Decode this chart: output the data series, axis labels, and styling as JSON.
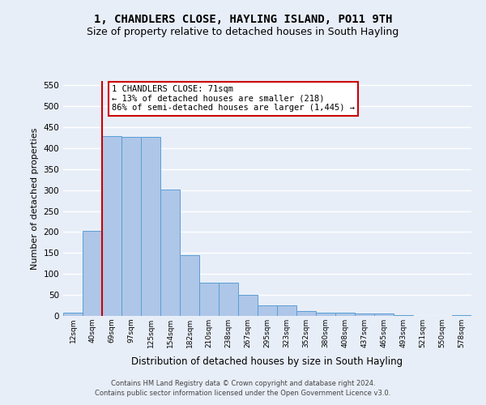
{
  "title": "1, CHANDLERS CLOSE, HAYLING ISLAND, PO11 9TH",
  "subtitle": "Size of property relative to detached houses in South Hayling",
  "xlabel": "Distribution of detached houses by size in South Hayling",
  "ylabel": "Number of detached properties",
  "categories": [
    "12sqm",
    "40sqm",
    "69sqm",
    "97sqm",
    "125sqm",
    "154sqm",
    "182sqm",
    "210sqm",
    "238sqm",
    "267sqm",
    "295sqm",
    "323sqm",
    "352sqm",
    "380sqm",
    "408sqm",
    "437sqm",
    "465sqm",
    "493sqm",
    "521sqm",
    "550sqm",
    "578sqm"
  ],
  "values": [
    8,
    202,
    429,
    426,
    426,
    301,
    145,
    80,
    80,
    50,
    25,
    25,
    11,
    8,
    8,
    5,
    5,
    1,
    0,
    0,
    2
  ],
  "bar_color": "#aec6e8",
  "bar_edge_color": "#5a9fd4",
  "vline_index": 2,
  "vline_color": "#cc0000",
  "annotation_text": "1 CHANDLERS CLOSE: 71sqm\n← 13% of detached houses are smaller (218)\n86% of semi-detached houses are larger (1,445) →",
  "annotation_box_color": "#ffffff",
  "annotation_box_edge": "#cc0000",
  "ylim": [
    0,
    560
  ],
  "yticks": [
    0,
    50,
    100,
    150,
    200,
    250,
    300,
    350,
    400,
    450,
    500,
    550
  ],
  "background_color": "#e8eef8",
  "grid_color": "#ffffff",
  "footer_line1": "Contains HM Land Registry data © Crown copyright and database right 2024.",
  "footer_line2": "Contains public sector information licensed under the Open Government Licence v3.0.",
  "title_fontsize": 10,
  "subtitle_fontsize": 9,
  "xlabel_fontsize": 8.5,
  "ylabel_fontsize": 8,
  "annotation_fontsize": 7.5
}
